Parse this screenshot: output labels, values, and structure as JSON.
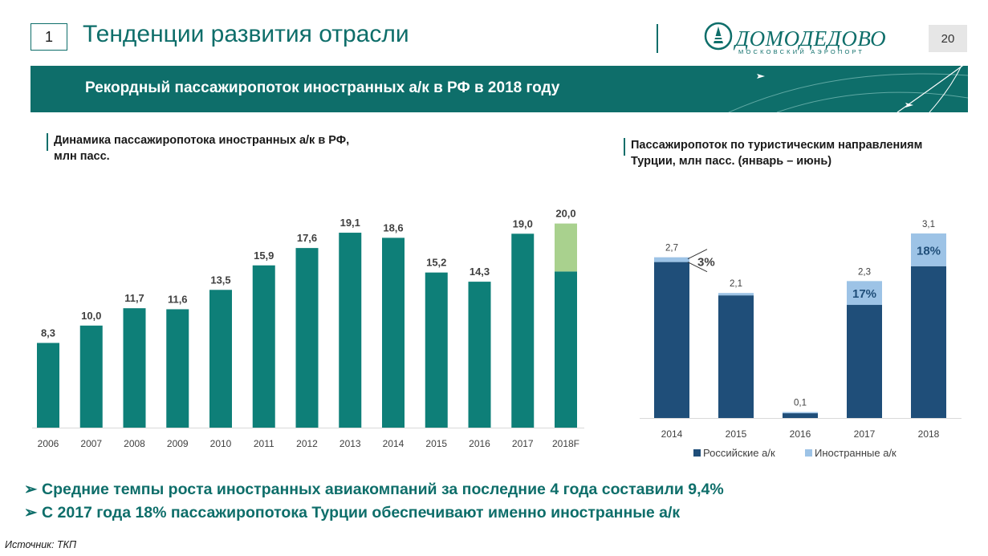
{
  "header": {
    "slide_number": "1",
    "title": "Тенденции развития отрасли",
    "page_number": "20",
    "logo": {
      "name": "ДОМОДЕДОВО",
      "tagline": "МОСКОВСКИЙ АЭРОПОРТ"
    }
  },
  "banner": {
    "text": "Рекордный пассажиропоток иностранных а/к в РФ в 2018 году"
  },
  "left_chart": {
    "subtitle_line1": "Динамика  пассажиропотока иностранных а/к в РФ,",
    "subtitle_line2": "млн пасс."
  },
  "right_chart": {
    "subtitle_line1": "Пассажиропоток по туристическим направлениям",
    "subtitle_line2": "Турции, млн пасс. (январь – июнь)"
  },
  "bullets": [
    "Средние темпы роста иностранных авиакомпаний за последние 4 года составили 9,4%",
    "С 2017 года 18% пассажиропотока Турции обеспечивают именно иностранные а/к"
  ],
  "source": "Источник: ТКП",
  "colors": {
    "teal": "#0e7f78",
    "forecast": "#a9d18e",
    "navy": "#1f4e79",
    "light_blue": "#9dc3e6",
    "brand": "#0e6e6a"
  },
  "chart_data": [
    {
      "type": "bar",
      "categories": [
        "2006",
        "2007",
        "2008",
        "2009",
        "2010",
        "2011",
        "2012",
        "2013",
        "2014",
        "2015",
        "2016",
        "2017",
        "2018F"
      ],
      "values": [
        8.3,
        10.0,
        11.7,
        11.6,
        13.5,
        15.9,
        17.6,
        19.1,
        18.6,
        15.2,
        14.3,
        19.0,
        20.0
      ],
      "value_labels": [
        "8,3",
        "10,0",
        "11,7",
        "11,6",
        "13,5",
        "15,9",
        "17,6",
        "19,1",
        "18,6",
        "15,2",
        "14,3",
        "19,0",
        "20,0"
      ],
      "forecast_split": {
        "category": "2018F",
        "base": 15.3,
        "forecast_part": 4.7
      },
      "ylim": [
        0,
        20.5
      ]
    },
    {
      "type": "bar",
      "stacked": true,
      "categories": [
        "2014",
        "2015",
        "2016",
        "2017",
        "2018"
      ],
      "series": [
        {
          "name": "Российские а/к",
          "values": [
            2.62,
            2.06,
            0.08,
            1.9,
            2.55
          ]
        },
        {
          "name": "Иностранные а/к",
          "values": [
            0.08,
            0.04,
            0.02,
            0.4,
            0.55
          ]
        }
      ],
      "total_labels": [
        "2,7",
        "2,1",
        "0,1",
        "2,3",
        "3,1"
      ],
      "share_labels": [
        {
          "category": "2014",
          "text": "3%"
        },
        {
          "category": "2017",
          "text": "17%"
        },
        {
          "category": "2018",
          "text": "18%"
        }
      ],
      "ylim": [
        0,
        3.1
      ],
      "legend": "bottom"
    }
  ]
}
